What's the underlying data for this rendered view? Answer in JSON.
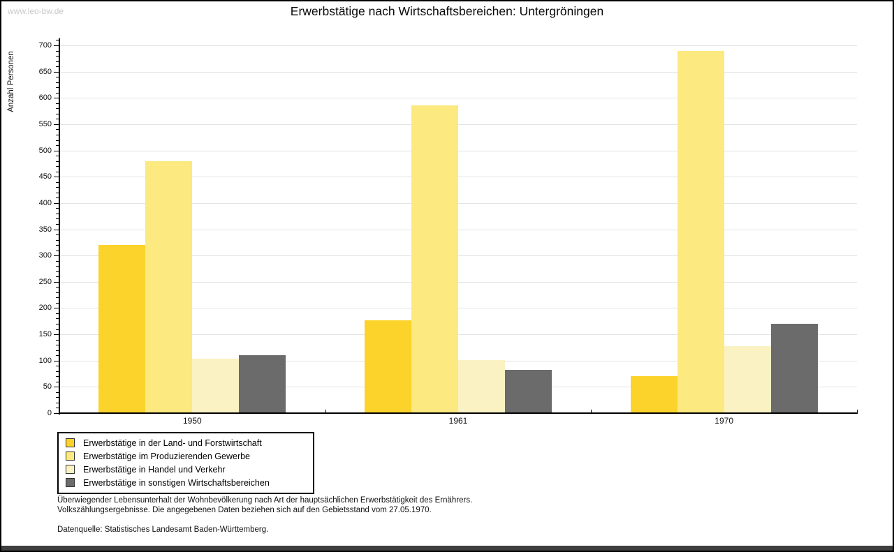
{
  "page": {
    "watermark": "www.leo-bw.de",
    "title": "Erwerbstätige nach Wirtschaftsbereichen: Untergröningen"
  },
  "chart_data": {
    "type": "bar",
    "title": "Erwerbstätige nach Wirtschaftsbereichen: Untergröningen",
    "categories": [
      "1950",
      "1961",
      "1970"
    ],
    "series": [
      {
        "name": "Erwerbstätige in der Land- und Forstwirtschaft",
        "color": "#FCD32B",
        "values": [
          320,
          177,
          70
        ]
      },
      {
        "name": "Erwerbstätige im Produzierenden Gewerbe",
        "color": "#FCE97F",
        "values": [
          480,
          586,
          690
        ]
      },
      {
        "name": "Erwerbstätige in Handel und Verkehr",
        "color": "#FBF2C4",
        "values": [
          104,
          101,
          127
        ]
      },
      {
        "name": "Erwerbstätige in sonstigen Wirtschaftsbereichen",
        "color": "#6B6B6B",
        "values": [
          110,
          82,
          170
        ]
      }
    ],
    "xlabel": "",
    "ylabel": "Anzahl Personen",
    "ylim": [
      0,
      700
    ],
    "ytick_major": 50,
    "ytick_minor": 10,
    "grid": true,
    "legend_position": "bottom-left",
    "gridline_color": "#E3E3E3",
    "axis_color": "#000000"
  },
  "footer": {
    "line1": "Überwiegender Lebensunterhalt der Wohnbevölkerung nach Art der hauptsächlichen Erwerbstätigkeit des Ernährers.",
    "line2": "Volkszählungsergebnisse. Die angegebenen Daten beziehen sich auf den Gebietsstand vom 27.05.1970.",
    "source": "Datenquelle: Statistisches Landesamt Baden-Württemberg."
  }
}
